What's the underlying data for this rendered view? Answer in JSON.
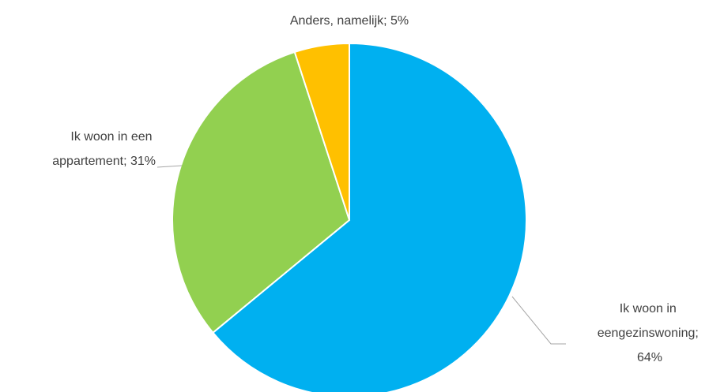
{
  "chart_data": {
    "type": "pie",
    "values": [
      64,
      31,
      5
    ],
    "value_labels": [
      "Ik woon in eengezinswoning; 64%",
      "Ik woon in een appartement; 31%",
      "Anders, namelijk; 5%"
    ],
    "colors": [
      "#00b0f0",
      "#92d050",
      "#ffc000"
    ]
  }
}
